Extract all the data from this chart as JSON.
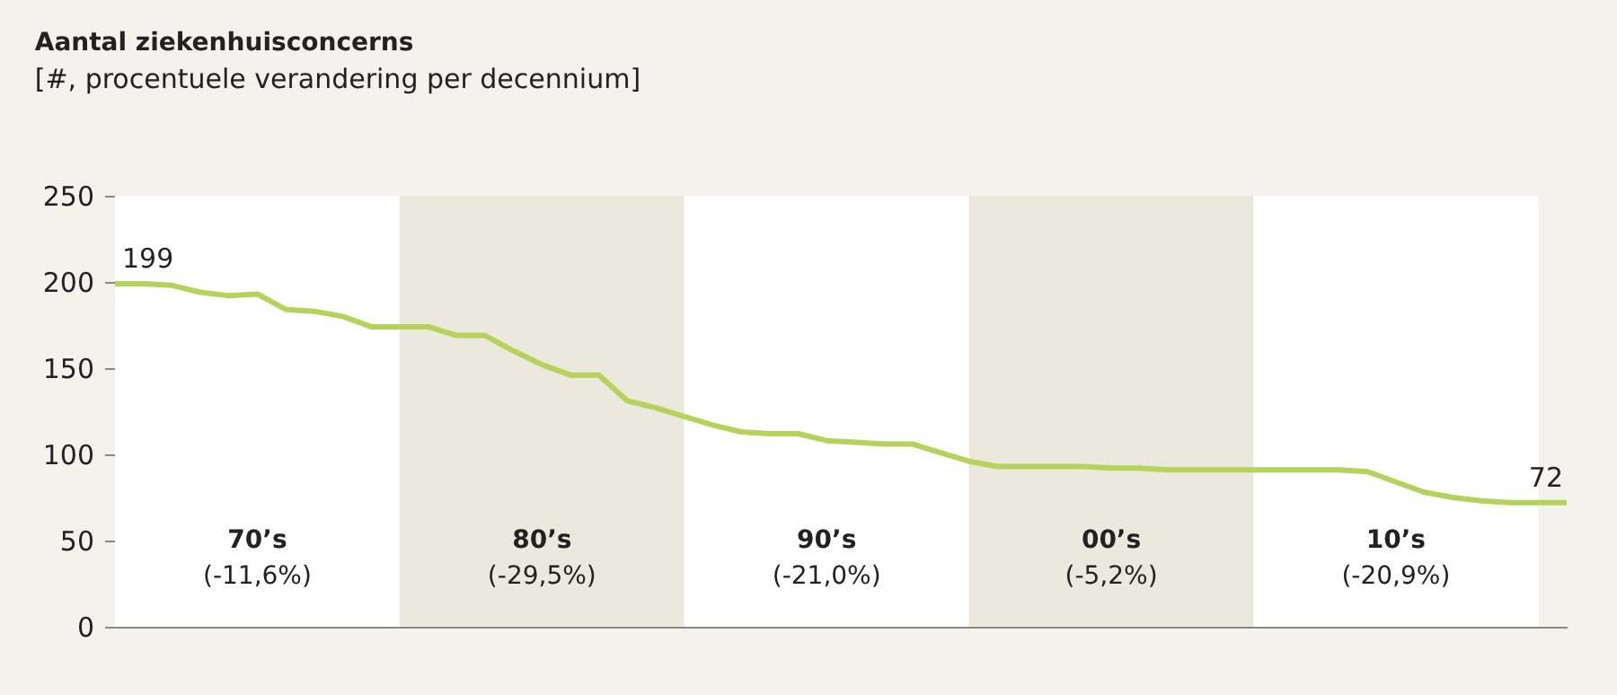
{
  "chart_data": {
    "type": "line",
    "title": "Aantal ziekenhuisconcerns",
    "subtitle": "[#, procentuele verandering per decennium]",
    "categories": [
      null,
      null,
      null,
      null,
      null,
      null,
      null,
      null,
      null,
      null,
      null,
      null,
      null,
      null,
      null,
      null,
      null,
      null,
      null,
      null,
      null,
      null,
      null,
      null,
      null,
      null,
      null,
      null,
      null,
      null,
      null,
      null,
      null,
      null,
      null,
      null,
      null,
      null,
      null,
      null,
      null,
      null,
      null,
      null,
      null,
      null,
      null,
      null,
      null,
      null,
      null,
      null
    ],
    "series": [
      {
        "color": "#b5d25a",
        "values": [
          199,
          199,
          198,
          194,
          192,
          193,
          184,
          183,
          180,
          174,
          174,
          174,
          169,
          169,
          160,
          152,
          146,
          146,
          131,
          127,
          122,
          117,
          113,
          112,
          112,
          108,
          107,
          106,
          106,
          101,
          96,
          93,
          93,
          93,
          93,
          92,
          92,
          91,
          91,
          91,
          91,
          91,
          91,
          91,
          90,
          84,
          78,
          75,
          73,
          72,
          72,
          72
        ],
        "value_labels": [
          "199",
          null,
          null,
          null,
          null,
          null,
          null,
          null,
          null,
          null,
          null,
          null,
          null,
          null,
          null,
          null,
          null,
          null,
          null,
          null,
          null,
          null,
          null,
          null,
          null,
          null,
          null,
          null,
          null,
          null,
          null,
          null,
          null,
          null,
          null,
          null,
          null,
          null,
          null,
          null,
          null,
          null,
          null,
          null,
          null,
          null,
          null,
          null,
          null,
          null,
          null,
          "72"
        ]
      }
    ],
    "ylim": [
      0,
      250
    ],
    "yticks": [
      0,
      50,
      100,
      150,
      200,
      250
    ],
    "tick_labels": "y",
    "grid": false,
    "marker": "none",
    "line_style": "solid",
    "annotations": [
      "70’s\n(-11,6%)",
      "80’s\n(-29,5%)",
      "90’s\n(-21,0%)",
      "00’s\n(-5,2%)",
      "10’s\n(-20,9%)"
    ]
  }
}
